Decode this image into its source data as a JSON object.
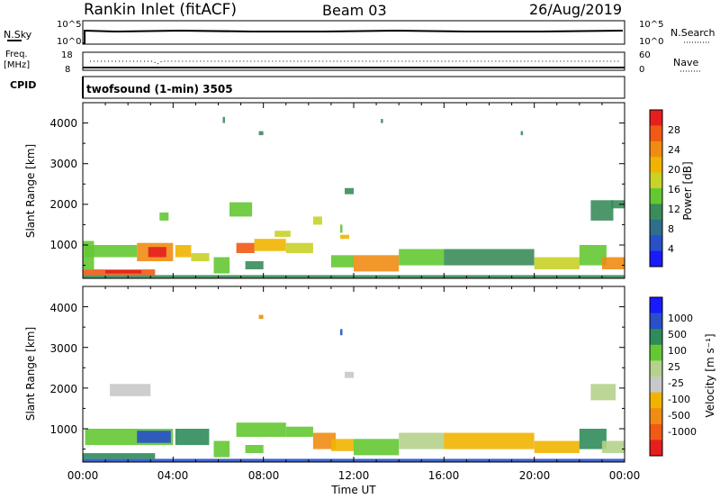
{
  "header": {
    "title": "Rankin Inlet (fitACF)",
    "beam": "Beam 03",
    "date": "26/Aug/2019"
  },
  "noise_panel": {
    "left_label": "N.Sky",
    "right_label": "N.Search",
    "left_ticks": [
      "10^5",
      "10^0"
    ],
    "right_ticks": [
      "10^5",
      "10^0"
    ]
  },
  "freq_panel": {
    "left_label_1": "Freq.",
    "left_label_2": "[MHz]",
    "left_ticks": [
      "18",
      "8"
    ],
    "right_label": "Nave",
    "right_ticks": [
      "60",
      "0"
    ]
  },
  "cpid_panel": {
    "label": "CPID",
    "text": "twofsound (1-min) 3505"
  },
  "colors": {
    "power": [
      "#1a1aff",
      "#2850c8",
      "#2f6e8c",
      "#3a8c5a",
      "#64c832",
      "#c8d228",
      "#f0b400",
      "#f08c14",
      "#f05a14",
      "#e61e1e"
    ],
    "velocity": [
      "#e61e1e",
      "#f05a14",
      "#f08c14",
      "#f0b400",
      "#c8c8c8",
      "#b4d28c",
      "#64c832",
      "#2f8c5a",
      "#2850c8",
      "#1a1aff"
    ]
  },
  "chart_data": [
    {
      "type": "heatmap",
      "name": "power",
      "xlabel": "",
      "ylabel": "Slant Range [km]",
      "xlim": [
        0,
        24
      ],
      "ylim": [
        180,
        4500
      ],
      "yticks": [
        "1000",
        "2000",
        "3000",
        "4000"
      ],
      "colorbar_label": "Power [dB]",
      "colorbar_ticks": [
        "4",
        "8",
        "12",
        "16",
        "20",
        "24",
        "28"
      ],
      "colorbar_range": [
        0,
        32
      ],
      "cells": [
        [
          0.0,
          24.0,
          180,
          260,
          0.35
        ],
        [
          0.0,
          3.2,
          260,
          400,
          0.8
        ],
        [
          1.0,
          2.6,
          300,
          380,
          0.9
        ],
        [
          0.0,
          0.5,
          400,
          1100,
          0.4
        ],
        [
          0.1,
          2.4,
          700,
          1000,
          0.45
        ],
        [
          2.4,
          4.0,
          600,
          1050,
          0.75
        ],
        [
          2.9,
          3.7,
          700,
          950,
          0.95
        ],
        [
          4.1,
          4.8,
          700,
          1000,
          0.6
        ],
        [
          4.8,
          5.6,
          600,
          800,
          0.5
        ],
        [
          5.8,
          6.5,
          300,
          700,
          0.45
        ],
        [
          6.8,
          7.6,
          800,
          1050,
          0.8
        ],
        [
          7.6,
          9.0,
          850,
          1150,
          0.65
        ],
        [
          9.0,
          10.2,
          800,
          1050,
          0.55
        ],
        [
          7.2,
          8.0,
          400,
          600,
          0.35
        ],
        [
          11.0,
          12.0,
          450,
          750,
          0.45
        ],
        [
          12.0,
          14.0,
          350,
          750,
          0.75
        ],
        [
          14.0,
          16.0,
          500,
          900,
          0.45
        ],
        [
          16.0,
          20.0,
          500,
          900,
          0.35
        ],
        [
          20.0,
          22.0,
          400,
          700,
          0.55
        ],
        [
          22.0,
          23.2,
          500,
          1000,
          0.45
        ],
        [
          23.0,
          24.0,
          400,
          700,
          0.7
        ],
        [
          3.4,
          3.8,
          1600,
          1800,
          0.45
        ],
        [
          6.5,
          7.5,
          1700,
          2050,
          0.4
        ],
        [
          8.5,
          9.2,
          1200,
          1350,
          0.55
        ],
        [
          10.2,
          10.6,
          1500,
          1700,
          0.5
        ],
        [
          11.4,
          11.8,
          1150,
          1250,
          0.6
        ],
        [
          11.6,
          12.0,
          2250,
          2400,
          0.35
        ],
        [
          22.5,
          23.5,
          1600,
          2100,
          0.3
        ],
        [
          23.4,
          24.0,
          1900,
          2100,
          0.3
        ],
        [
          6.2,
          6.3,
          4000,
          4150,
          0.3
        ],
        [
          7.8,
          8.0,
          3700,
          3800,
          0.3
        ],
        [
          11.4,
          11.5,
          1300,
          1500,
          0.4
        ],
        [
          13.2,
          13.3,
          4000,
          4100,
          0.3
        ],
        [
          19.4,
          19.5,
          3700,
          3800,
          0.3
        ]
      ]
    },
    {
      "type": "heatmap",
      "name": "velocity",
      "xlabel": "Time UT",
      "ylabel": "Slant Range [km]",
      "xlim": [
        0,
        24
      ],
      "ylim": [
        180,
        4500
      ],
      "xticks": [
        "00:00",
        "04:00",
        "08:00",
        "12:00",
        "16:00",
        "20:00",
        "00:00"
      ],
      "yticks": [
        "1000",
        "2000",
        "3000",
        "4000"
      ],
      "colorbar_label": "Velocity [m s⁻¹]",
      "colorbar_ticks": [
        "1000",
        "500",
        "100",
        "25",
        "-25",
        "-100",
        "-500",
        "-1000"
      ],
      "cells": [
        [
          0.0,
          24.0,
          180,
          260,
          0.85
        ],
        [
          0.0,
          3.2,
          260,
          400,
          0.7
        ],
        [
          0.1,
          4.0,
          600,
          1000,
          0.65
        ],
        [
          2.4,
          3.9,
          650,
          950,
          0.8
        ],
        [
          4.1,
          5.6,
          600,
          1000,
          0.7
        ],
        [
          5.8,
          6.5,
          300,
          700,
          0.65
        ],
        [
          6.8,
          9.0,
          800,
          1150,
          0.65
        ],
        [
          9.0,
          10.2,
          800,
          1050,
          0.6
        ],
        [
          7.2,
          8.0,
          400,
          600,
          0.65
        ],
        [
          10.2,
          11.2,
          500,
          900,
          0.2
        ],
        [
          11.0,
          12.0,
          450,
          750,
          0.35
        ],
        [
          12.0,
          14.0,
          350,
          750,
          0.65
        ],
        [
          14.0,
          16.0,
          500,
          900,
          0.55
        ],
        [
          16.0,
          20.0,
          500,
          900,
          0.3
        ],
        [
          20.0,
          22.0,
          400,
          700,
          0.3
        ],
        [
          22.0,
          23.2,
          500,
          1000,
          0.7
        ],
        [
          23.0,
          24.0,
          400,
          700,
          0.55
        ],
        [
          1.2,
          3.0,
          1800,
          2100,
          0.45
        ],
        [
          11.6,
          12.0,
          2250,
          2400,
          0.45
        ],
        [
          22.5,
          23.6,
          1700,
          2100,
          0.5
        ],
        [
          7.8,
          8.0,
          3700,
          3800,
          0.25
        ],
        [
          11.4,
          11.5,
          3300,
          3450,
          0.85
        ]
      ]
    }
  ]
}
